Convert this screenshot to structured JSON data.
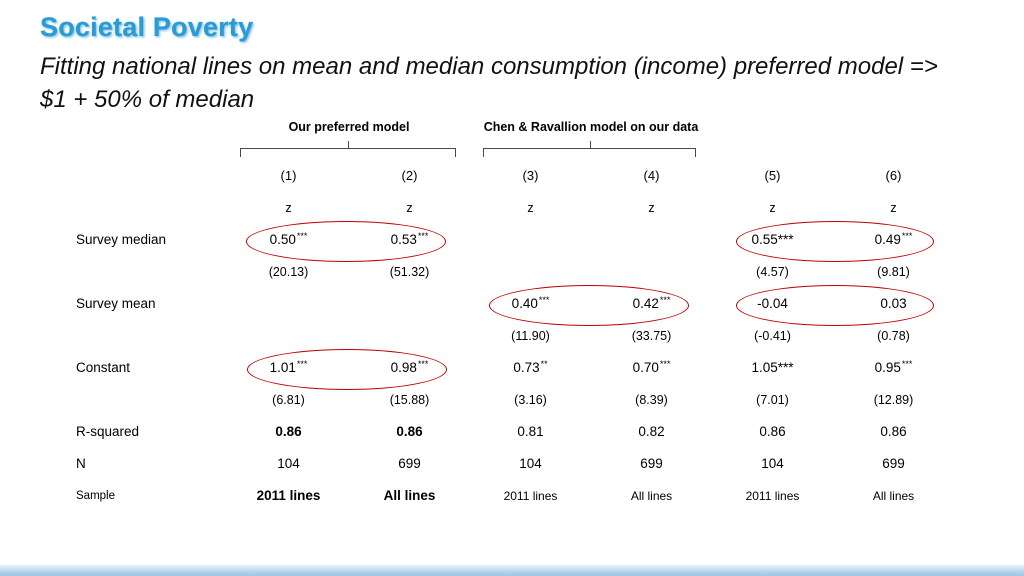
{
  "slide": {
    "title": "Societal Poverty",
    "subtitle_line1": "Fitting national lines on mean and median consumption (income) preferred model =>",
    "subtitle_line2": "$1 + 50% of median"
  },
  "colors": {
    "title_blue": "#2b9ad5",
    "highlight_red": "#c00000",
    "footer_blue": "#aecfe9",
    "footer_blue_light": "#eaf3fa"
  },
  "chart_data": {
    "type": "table",
    "group_headers": [
      {
        "label": "Our preferred model",
        "span_columns": [
          "(1)",
          "(2)"
        ]
      },
      {
        "label": "Chen & Ravallion model on our data",
        "span_columns": [
          "(3)",
          "(4)"
        ]
      }
    ],
    "columns": [
      "(1)",
      "(2)",
      "(3)",
      "(4)",
      "(5)",
      "(6)"
    ],
    "stat_label_row": [
      "z",
      "z",
      "z",
      "z",
      "z",
      "z"
    ],
    "coefficient_rows": [
      {
        "label": "Survey median",
        "estimates": [
          "0.50***",
          "0.53***",
          "",
          "",
          "0.55***",
          "0.49***"
        ],
        "t_stats": [
          "(20.13)",
          "(51.32)",
          "",
          "",
          "(4.57)",
          "(9.81)"
        ]
      },
      {
        "label": "Survey mean",
        "estimates": [
          "",
          "",
          "0.40***",
          "0.42***",
          "-0.04",
          "0.03"
        ],
        "t_stats": [
          "",
          "",
          "(11.90)",
          "(33.75)",
          "(-0.41)",
          "(0.78)"
        ]
      },
      {
        "label": "Constant",
        "estimates": [
          "1.01***",
          "0.98***",
          "0.73**",
          "0.70***",
          "1.05***",
          "0.95***"
        ],
        "t_stats": [
          "(6.81)",
          "(15.88)",
          "(3.16)",
          "(8.39)",
          "(7.01)",
          "(12.89)"
        ]
      }
    ],
    "summary_rows": [
      {
        "label": "R-squared",
        "values": [
          "0.86",
          "0.86",
          "0.81",
          "0.82",
          "0.86",
          "0.86"
        ],
        "bold_columns": [
          0,
          1
        ]
      },
      {
        "label": "N",
        "values": [
          "104",
          "699",
          "104",
          "699",
          "104",
          "699"
        ],
        "bold_columns": []
      },
      {
        "label": "Sample",
        "values": [
          "2011 lines",
          "All lines",
          "2011 lines",
          "All lines",
          "2011 lines",
          "All lines"
        ],
        "bold_columns": [
          0,
          1
        ]
      }
    ],
    "highlights": [
      {
        "row": "Survey median",
        "columns": "(1)-(2)",
        "values": "0.50***, 0.53***"
      },
      {
        "row": "Survey median",
        "columns": "(5)-(6)",
        "values": "0.55***, 0.49***"
      },
      {
        "row": "Survey mean",
        "columns": "(3)-(4)",
        "values": "0.40***, 0.42***"
      },
      {
        "row": "Survey mean",
        "columns": "(5)-(6)",
        "values": "-0.04, 0.03"
      },
      {
        "row": "Constant",
        "columns": "(1)-(2)",
        "values": "1.01***, 0.98***"
      }
    ]
  }
}
